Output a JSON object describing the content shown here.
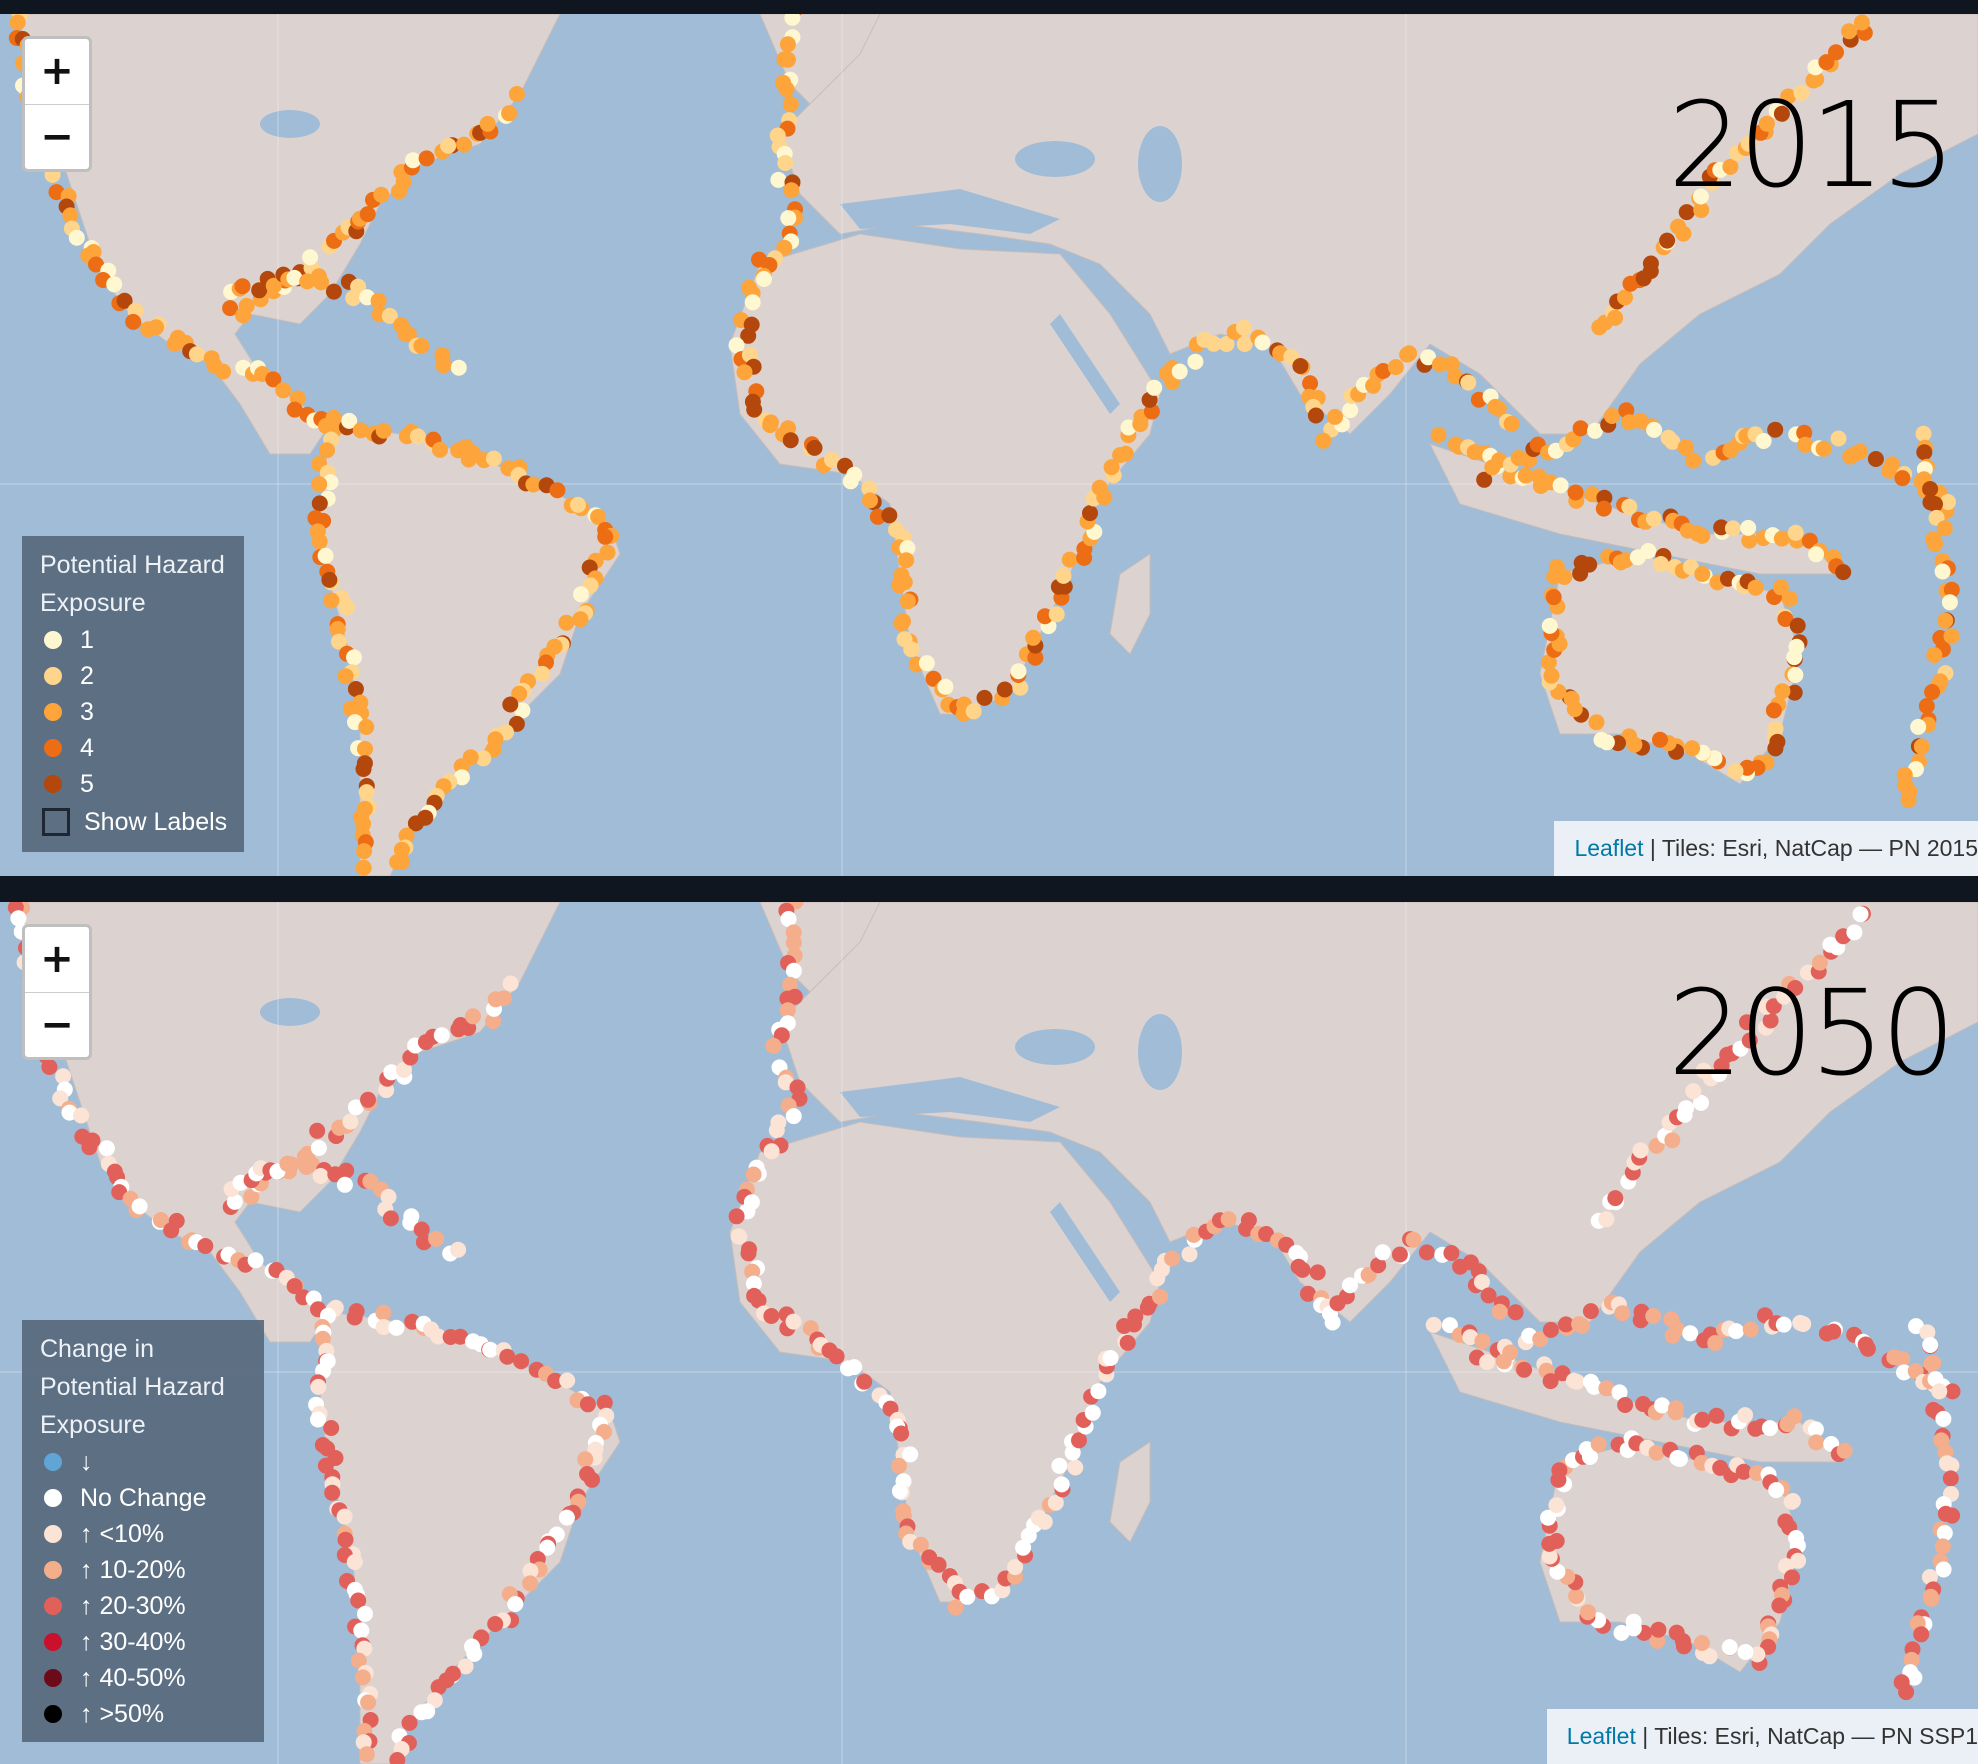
{
  "map_2015": {
    "year_label": "2015",
    "zoom_in": "+",
    "zoom_out": "−",
    "legend": {
      "title": "Potential Hazard Exposure",
      "items": [
        {
          "label": "1",
          "color": "#fff7cf"
        },
        {
          "label": "2",
          "color": "#fed58b"
        },
        {
          "label": "3",
          "color": "#fda43a"
        },
        {
          "label": "4",
          "color": "#ec6d14"
        },
        {
          "label": "5",
          "color": "#b4470b"
        }
      ],
      "show_labels": "Show Labels"
    },
    "attribution": {
      "link": "Leaflet",
      "text": " | Tiles: Esri, NatCap — PN 2015"
    }
  },
  "map_2050": {
    "year_label": "2050",
    "zoom_in": "+",
    "zoom_out": "−",
    "legend": {
      "title": "Change in Potential Hazard Exposure",
      "items": [
        {
          "label": "↓",
          "color": "#5fa6d6"
        },
        {
          "label": "No Change",
          "color": "#ffffff"
        },
        {
          "label": "↑ <10%",
          "color": "#fbe3d6"
        },
        {
          "label": "↑ 10-20%",
          "color": "#f4ae8c"
        },
        {
          "label": "↑ 20-30%",
          "color": "#e2605a"
        },
        {
          "label": "↑ 30-40%",
          "color": "#c9102c"
        },
        {
          "label": "↑ 40-50%",
          "color": "#6d0a1a"
        },
        {
          "label": "↑ >50%",
          "color": "#000000"
        }
      ]
    },
    "attribution": {
      "link": "Leaflet",
      "text": " | Tiles: Esri, NatCap — PN SSP1"
    }
  },
  "colors": {
    "ocean": "#a1bcd7",
    "land": "#dcd3d1"
  }
}
